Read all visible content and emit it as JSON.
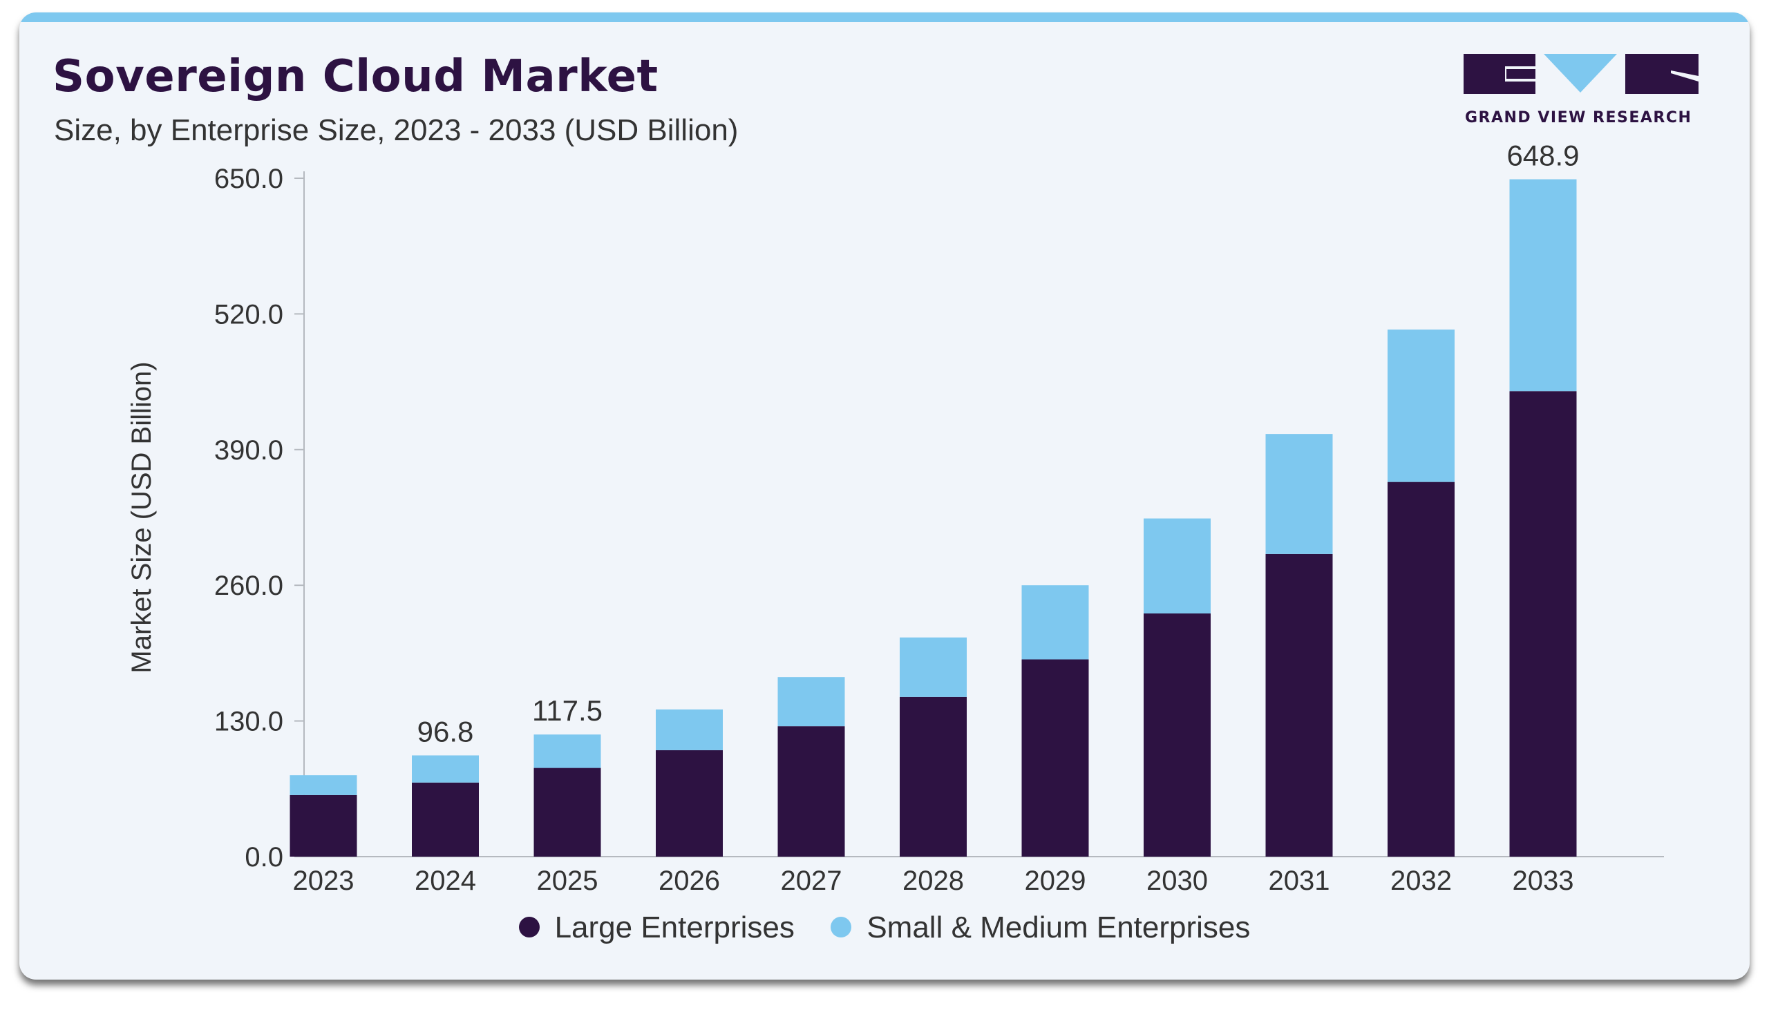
{
  "header": {
    "title": "Sovereign Cloud Market",
    "subtitle": "Size, by Enterprise Size, 2023 - 2033 (USD Billion)"
  },
  "logo": {
    "text": "GRAND VIEW RESEARCH",
    "icon": "gvr-logo-icon"
  },
  "colors": {
    "accent_bar": "#7ec8ef",
    "large": "#2d1242",
    "sme": "#7ec8ef"
  },
  "chart_data": {
    "type": "bar",
    "stacked": true,
    "categories": [
      "2023",
      "2024",
      "2025",
      "2026",
      "2027",
      "2028",
      "2029",
      "2030",
      "2031",
      "2032",
      "2033"
    ],
    "series": [
      {
        "name": "Large Enterprises",
        "color": "#2d1242",
        "values": [
          59,
          71,
          85,
          102,
          125,
          153,
          189,
          233,
          290,
          359,
          446
        ]
      },
      {
        "name": "Small & Medium Enterprises",
        "color": "#7ec8ef",
        "values": [
          19,
          26,
          32,
          39,
          47,
          57,
          71,
          91,
          115,
          146,
          203
        ]
      }
    ],
    "data_labels": [
      {
        "category": "2024",
        "text": "96.8"
      },
      {
        "category": "2025",
        "text": "117.5"
      },
      {
        "category": "2033",
        "text": "648.9"
      }
    ],
    "ylabel": "Market Size (USD Billion)",
    "xlabel": "",
    "ylim": [
      0,
      650
    ],
    "yticks": [
      "0.0",
      "130.0",
      "260.0",
      "390.0",
      "520.0",
      "650.0"
    ],
    "grid": false,
    "legend_position": "bottom"
  }
}
